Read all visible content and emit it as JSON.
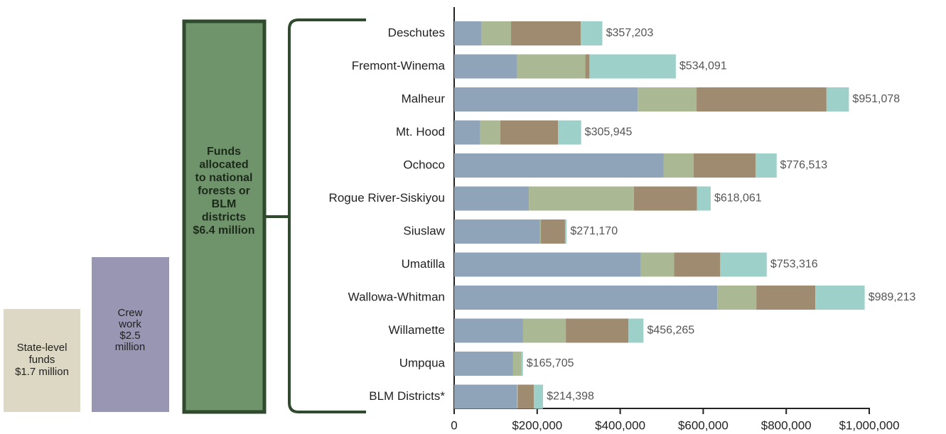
{
  "chart_data": {
    "type": "stacked-barh",
    "categories": [
      "Deschutes",
      "Fremont-Winema",
      "Malheur",
      "Mt. Hood",
      "Ochoco",
      "Rogue River-Siskiyou",
      "Siuslaw",
      "Umatilla",
      "Wallowa-Whitman",
      "Willamette",
      "Umpqua",
      "BLM Districts*"
    ],
    "series": [
      {
        "color": "#90a4b9",
        "values": [
          65000,
          152000,
          442000,
          63000,
          505000,
          180000,
          207000,
          450000,
          634000,
          166000,
          142000,
          151000
        ]
      },
      {
        "color": "#aab994",
        "values": [
          72000,
          164000,
          142000,
          48000,
          72000,
          253000,
          2000,
          80000,
          94000,
          103000,
          20000,
          2000
        ]
      },
      {
        "color": "#9f8b70",
        "values": [
          168000,
          10000,
          313000,
          139000,
          149000,
          152000,
          58000,
          111000,
          142000,
          151000,
          0,
          39000
        ]
      },
      {
        "color": "#9dd0c9",
        "values": [
          52000,
          208000,
          54000,
          56000,
          51000,
          33000,
          4000,
          112000,
          119000,
          36000,
          3700,
          22000
        ]
      }
    ],
    "totals": [
      357203,
      534091,
      951078,
      305945,
      776513,
      618061,
      271170,
      753316,
      989213,
      456265,
      165705,
      214398
    ],
    "total_labels": [
      "$357,203",
      "$534,091",
      "$951,078",
      "$305,945",
      "$776,513",
      "$618,061",
      "$271,170",
      "$753,316",
      "$989,213",
      "$456,265",
      "$165,705",
      "$214,398"
    ],
    "xlim": [
      0,
      1000000
    ],
    "xticks": [
      0,
      {
        "value": 200000,
        "label": "$200,000"
      },
      {
        "value": 400000,
        "label": "$400,000"
      },
      {
        "value": 600000,
        "label": "$600,000"
      },
      {
        "value": 800000,
        "label": "$800,000"
      },
      {
        "value": 1000000,
        "label": "$1,000,000"
      }
    ],
    "annotations": [
      {
        "lines": [
          "State-level",
          "funds",
          "$1.7 million"
        ]
      },
      {
        "lines": [
          "Crew",
          "work",
          "$2.5",
          "million"
        ]
      },
      {
        "lines": [
          "Funds",
          "allocated",
          "to national",
          "forests or",
          "BLM",
          "districts",
          "$6.4 million"
        ]
      }
    ]
  }
}
